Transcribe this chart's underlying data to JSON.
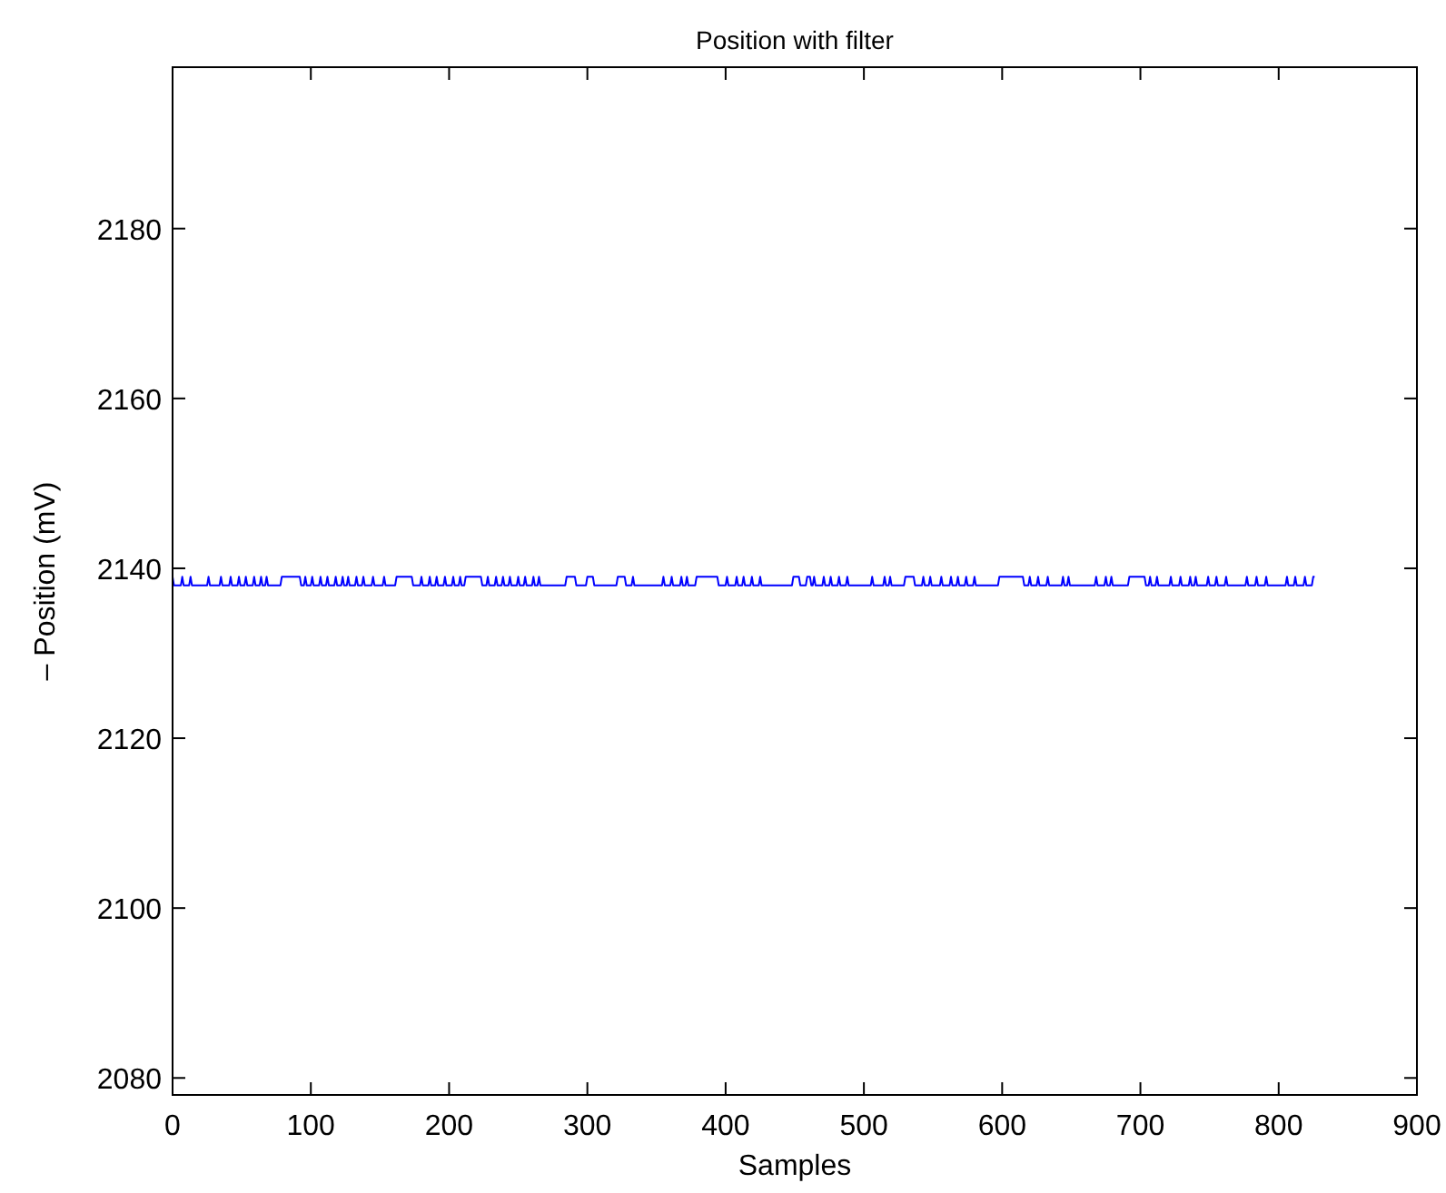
{
  "chart_data": {
    "type": "line",
    "title": "Position with filter",
    "xlabel": "Samples",
    "ylabel": "– Position (mV)",
    "xlim": [
      0,
      900
    ],
    "xticks": [
      0,
      100,
      200,
      300,
      400,
      500,
      600,
      700,
      800,
      900
    ],
    "ylim": [
      2078,
      2199
    ],
    "yticks": [
      2080,
      2100,
      2120,
      2140,
      2160,
      2180
    ],
    "grid": false,
    "marker": "none",
    "line_style": "solid",
    "series": [
      {
        "color": "#0000ff",
        "x": [
          0,
          1,
          6,
          7,
          8,
          12,
          13,
          14,
          25,
          26,
          27,
          34,
          35,
          36,
          41,
          42,
          43,
          47,
          48,
          49,
          52,
          53,
          54,
          58,
          59,
          60,
          63,
          64,
          65,
          67,
          68,
          69,
          78,
          79,
          92,
          93,
          95,
          96,
          97,
          100,
          101,
          102,
          106,
          107,
          108,
          111,
          112,
          113,
          117,
          118,
          119,
          122,
          123,
          124,
          126,
          127,
          128,
          132,
          133,
          134,
          137,
          138,
          139,
          144,
          145,
          146,
          152,
          153,
          154,
          161,
          162,
          173,
          174,
          179,
          180,
          181,
          185,
          186,
          187,
          190,
          191,
          192,
          196,
          197,
          198,
          202,
          203,
          204,
          207,
          208,
          209,
          211,
          212,
          223,
          224,
          227,
          228,
          229,
          233,
          234,
          235,
          238,
          239,
          240,
          243,
          244,
          245,
          249,
          250,
          251,
          254,
          255,
          256,
          260,
          261,
          262,
          264,
          265,
          266,
          284,
          285,
          291,
          292,
          299,
          300,
          304,
          305,
          321,
          322,
          327,
          328,
          332,
          333,
          334,
          354,
          355,
          356,
          360,
          361,
          362,
          367,
          368,
          369,
          371,
          372,
          373,
          378,
          379,
          394,
          395,
          400,
          401,
          402,
          407,
          408,
          409,
          412,
          413,
          414,
          418,
          419,
          420,
          424,
          425,
          426,
          448,
          449,
          453,
          454,
          458,
          459,
          461,
          462,
          463,
          464,
          465,
          470,
          471,
          472,
          475,
          476,
          477,
          481,
          482,
          483,
          487,
          488,
          489,
          505,
          506,
          507,
          514,
          515,
          516,
          518,
          519,
          520,
          529,
          530,
          536,
          537,
          542,
          543,
          544,
          547,
          548,
          549,
          555,
          556,
          557,
          562,
          563,
          564,
          567,
          568,
          569,
          573,
          574,
          575,
          579,
          580,
          581,
          597,
          598,
          615,
          616,
          619,
          620,
          621,
          625,
          626,
          627,
          632,
          633,
          634,
          643,
          644,
          645,
          647,
          648,
          649,
          667,
          668,
          669,
          674,
          675,
          676,
          678,
          679,
          680,
          691,
          692,
          703,
          704,
          706,
          707,
          708,
          711,
          712,
          713,
          721,
          722,
          723,
          728,
          729,
          730,
          735,
          736,
          737,
          739,
          740,
          741,
          748,
          749,
          750,
          754,
          755,
          756,
          761,
          762,
          763,
          776,
          777,
          778,
          783,
          784,
          785,
          790,
          791,
          792,
          805,
          806,
          807,
          811,
          812,
          813,
          818,
          819,
          820,
          824,
          825,
          826
        ],
        "values": [
          2139,
          2138,
          2138,
          2139,
          2138,
          2138,
          2139,
          2138,
          2138,
          2139,
          2138,
          2138,
          2139,
          2138,
          2138,
          2139,
          2138,
          2138,
          2139,
          2138,
          2138,
          2139,
          2138,
          2138,
          2139,
          2138,
          2138,
          2139,
          2138,
          2138,
          2139,
          2138,
          2138,
          2139,
          2139,
          2138,
          2138,
          2139,
          2138,
          2138,
          2139,
          2138,
          2138,
          2139,
          2138,
          2138,
          2139,
          2138,
          2138,
          2139,
          2138,
          2138,
          2139,
          2138,
          2138,
          2139,
          2138,
          2138,
          2139,
          2138,
          2138,
          2139,
          2138,
          2138,
          2139,
          2138,
          2138,
          2139,
          2138,
          2138,
          2139,
          2139,
          2138,
          2138,
          2139,
          2138,
          2138,
          2139,
          2138,
          2138,
          2139,
          2138,
          2138,
          2139,
          2138,
          2138,
          2139,
          2138,
          2138,
          2139,
          2138,
          2138,
          2139,
          2139,
          2138,
          2138,
          2139,
          2138,
          2138,
          2139,
          2138,
          2138,
          2139,
          2138,
          2138,
          2139,
          2138,
          2138,
          2139,
          2138,
          2138,
          2139,
          2138,
          2138,
          2139,
          2138,
          2138,
          2139,
          2138,
          2138,
          2139,
          2139,
          2138,
          2138,
          2139,
          2139,
          2138,
          2138,
          2139,
          2139,
          2138,
          2138,
          2139,
          2138,
          2138,
          2139,
          2138,
          2138,
          2139,
          2138,
          2138,
          2139,
          2138,
          2138,
          2139,
          2138,
          2138,
          2139,
          2139,
          2138,
          2138,
          2139,
          2138,
          2138,
          2139,
          2138,
          2138,
          2139,
          2138,
          2138,
          2139,
          2138,
          2138,
          2139,
          2138,
          2138,
          2139,
          2139,
          2138,
          2138,
          2139,
          2139,
          2138,
          2138,
          2139,
          2138,
          2138,
          2139,
          2138,
          2138,
          2139,
          2138,
          2138,
          2139,
          2138,
          2138,
          2139,
          2138,
          2138,
          2139,
          2138,
          2138,
          2139,
          2138,
          2138,
          2139,
          2138,
          2138,
          2139,
          2139,
          2138,
          2138,
          2139,
          2138,
          2138,
          2139,
          2138,
          2138,
          2139,
          2138,
          2138,
          2139,
          2138,
          2138,
          2139,
          2138,
          2138,
          2139,
          2138,
          2138,
          2139,
          2138,
          2138,
          2139,
          2139,
          2138,
          2138,
          2139,
          2138,
          2138,
          2139,
          2138,
          2138,
          2139,
          2138,
          2138,
          2139,
          2138,
          2138,
          2139,
          2138,
          2138,
          2139,
          2138,
          2138,
          2139,
          2138,
          2138,
          2139,
          2138,
          2138,
          2139,
          2139,
          2138,
          2138,
          2139,
          2138,
          2138,
          2139,
          2138,
          2138,
          2139,
          2138,
          2138,
          2139,
          2138,
          2138,
          2139,
          2138,
          2138,
          2139,
          2138,
          2138,
          2139,
          2138,
          2138,
          2139,
          2138,
          2138,
          2139,
          2138,
          2138,
          2139,
          2138,
          2138,
          2139,
          2138,
          2138,
          2139,
          2138,
          2138,
          2139,
          2138,
          2138,
          2139,
          2138,
          2138,
          2139,
          2138,
          2138,
          2139,
          2139
        ]
      }
    ]
  }
}
